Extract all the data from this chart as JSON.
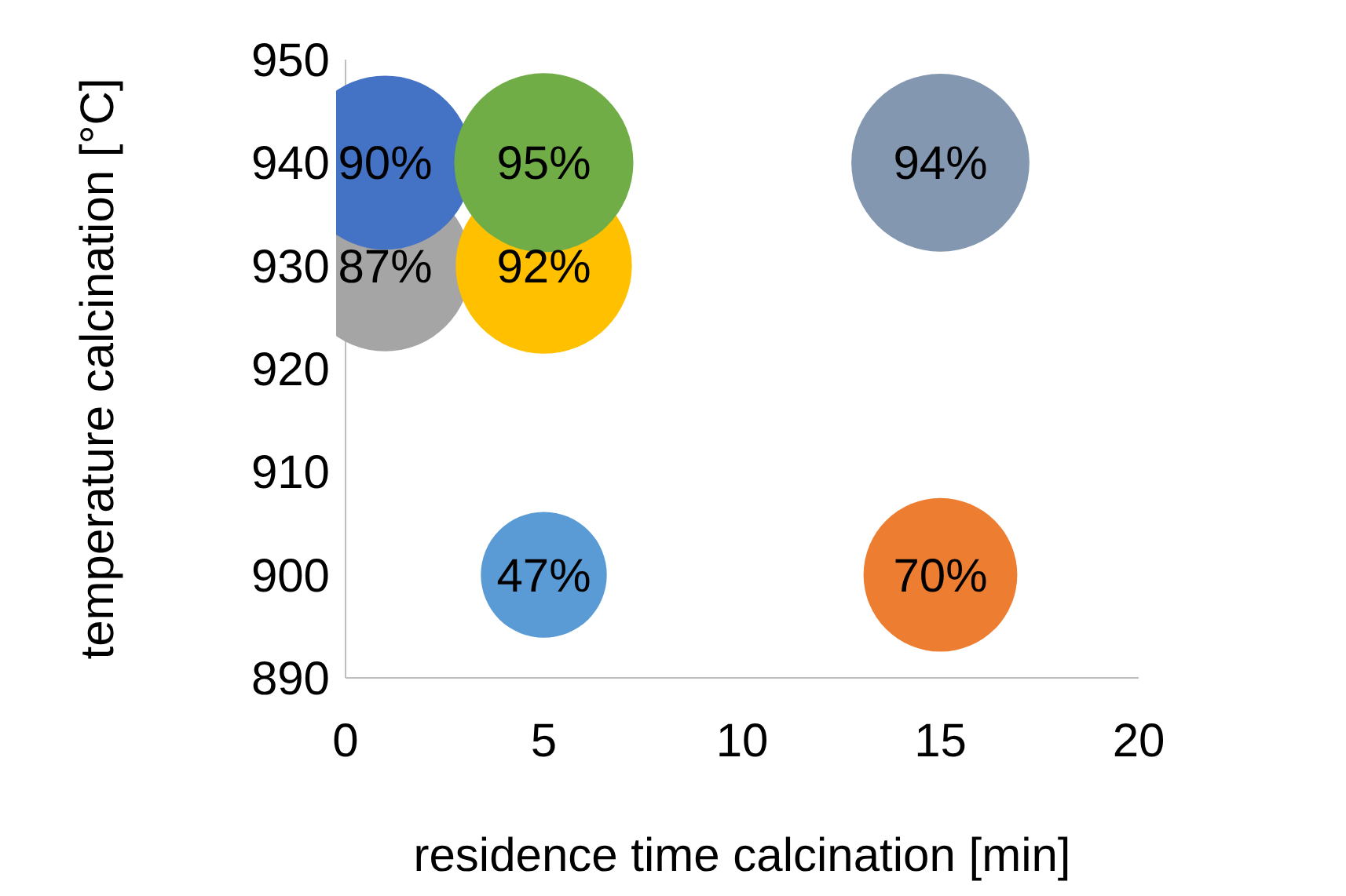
{
  "chart_data": {
    "type": "bubble",
    "xlabel": "residence time calcination [min]",
    "ylabel": "temperature calcination [°C]",
    "x": [
      1,
      1,
      5,
      5,
      15,
      5,
      15
    ],
    "values": [
      930,
      940,
      930,
      940,
      940,
      900,
      900
    ],
    "sizes": [
      0.916,
      0.947,
      0.968,
      1,
      0.989,
      0.495,
      0.737
    ],
    "colors": [
      "#a5a5a5",
      "#4472c4",
      "#ffc000",
      "#70ad47",
      "#8497b0",
      "#5b9bd5",
      "#ed7d31"
    ],
    "annotations": [
      {
        "text": "87%",
        "x": 1,
        "y": 930
      },
      {
        "text": "90%",
        "x": 1,
        "y": 940
      },
      {
        "text": "92%",
        "x": 5,
        "y": 930
      },
      {
        "text": "95%",
        "x": 5,
        "y": 940
      },
      {
        "text": "94%",
        "x": 15,
        "y": 940
      },
      {
        "text": "47%",
        "x": 5,
        "y": 900
      },
      {
        "text": "70%",
        "x": 15,
        "y": 900
      }
    ],
    "xlim": [
      0,
      20
    ],
    "xticks": [
      0,
      5,
      10,
      15,
      20
    ],
    "ylim": [
      890,
      950
    ],
    "yticks": [
      890,
      900,
      910,
      920,
      930,
      940,
      950
    ],
    "grid": false
  }
}
